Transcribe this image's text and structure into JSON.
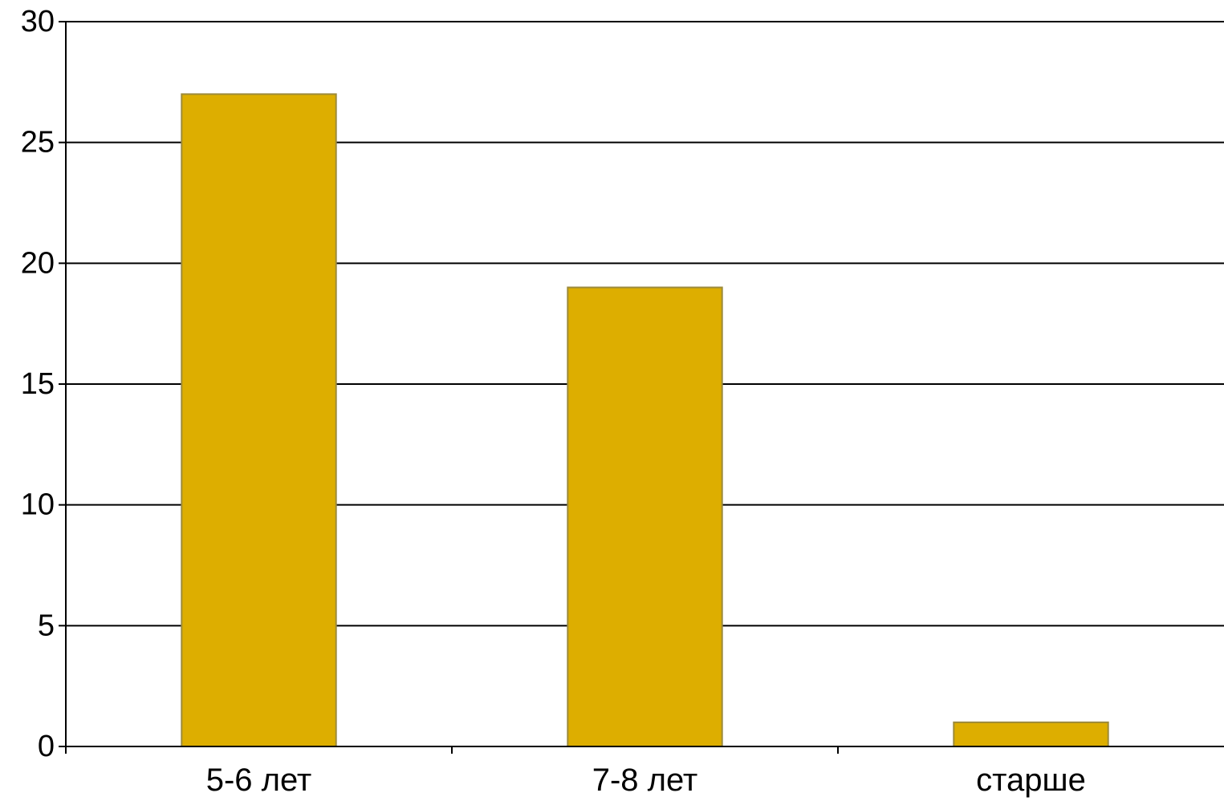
{
  "chart_data": {
    "type": "bar",
    "categories": [
      "5-6 лет",
      "7-8 лет",
      "старше"
    ],
    "values": [
      27,
      19,
      1
    ],
    "ylim": [
      0,
      30
    ],
    "yticks": [
      0,
      5,
      10,
      15,
      20,
      25,
      30
    ],
    "grid": true,
    "legend": "none",
    "colors": {
      "bar_fill": "#DDAE00",
      "bar_stroke": "#9c8a3a",
      "grid": "#000000",
      "axis": "#000000"
    }
  }
}
